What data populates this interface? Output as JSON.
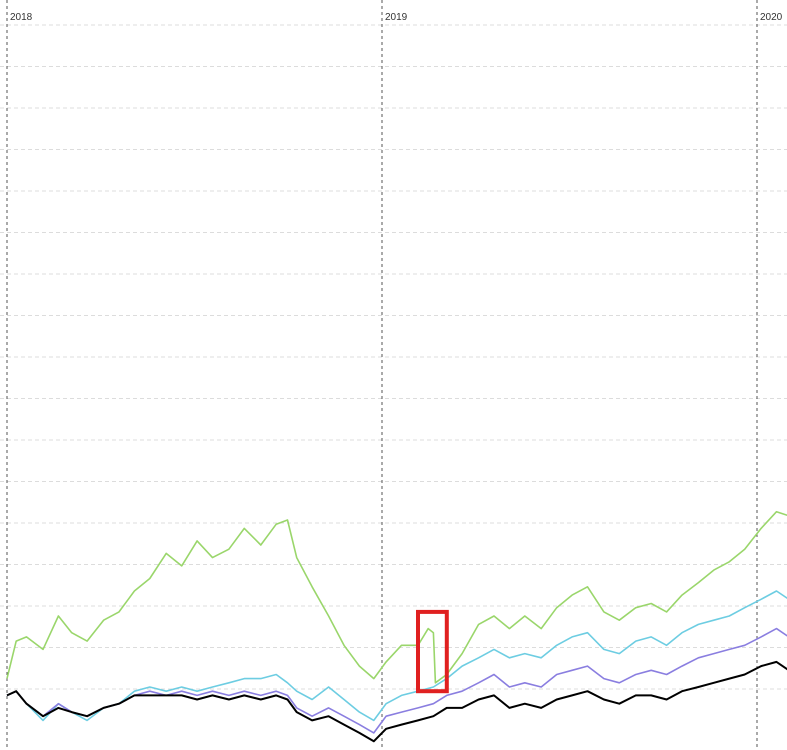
{
  "chart_data": {
    "type": "line",
    "title": "",
    "xlabel": "",
    "ylabel": "",
    "x_tick_labels": [
      "2018",
      "2019",
      "2020"
    ],
    "grid": true,
    "legend": "none",
    "series": [
      {
        "color": "#9ad66b",
        "points": [
          [
            "2018-01-01",
            1.02
          ],
          [
            "2018-01-10",
            1.11
          ],
          [
            "2018-01-20",
            1.12
          ],
          [
            "2018-02-05",
            1.09
          ],
          [
            "2018-02-20",
            1.17
          ],
          [
            "2018-03-05",
            1.13
          ],
          [
            "2018-03-20",
            1.11
          ],
          [
            "2018-04-05",
            1.16
          ],
          [
            "2018-04-20",
            1.18
          ],
          [
            "2018-05-05",
            1.23
          ],
          [
            "2018-05-20",
            1.26
          ],
          [
            "2018-06-05",
            1.32
          ],
          [
            "2018-06-20",
            1.29
          ],
          [
            "2018-07-05",
            1.35
          ],
          [
            "2018-07-20",
            1.31
          ],
          [
            "2018-08-05",
            1.33
          ],
          [
            "2018-08-20",
            1.38
          ],
          [
            "2018-09-05",
            1.34
          ],
          [
            "2018-09-20",
            1.39
          ],
          [
            "2018-10-01",
            1.4
          ],
          [
            "2018-10-10",
            1.31
          ],
          [
            "2018-10-25",
            1.24
          ],
          [
            "2018-11-10",
            1.17
          ],
          [
            "2018-11-25",
            1.1
          ],
          [
            "2018-12-10",
            1.05
          ],
          [
            "2018-12-24",
            1.02
          ],
          [
            "2019-01-05",
            1.06
          ],
          [
            "2019-01-20",
            1.1
          ],
          [
            "2019-02-05",
            1.1
          ],
          [
            "2019-02-15",
            1.14
          ],
          [
            "2019-02-20",
            1.13
          ],
          [
            "2019-02-22",
            1.01
          ],
          [
            "2019-03-05",
            1.03
          ],
          [
            "2019-03-20",
            1.08
          ],
          [
            "2019-04-05",
            1.15
          ],
          [
            "2019-04-20",
            1.17
          ],
          [
            "2019-05-05",
            1.14
          ],
          [
            "2019-05-20",
            1.17
          ],
          [
            "2019-06-05",
            1.14
          ],
          [
            "2019-06-20",
            1.19
          ],
          [
            "2019-07-05",
            1.22
          ],
          [
            "2019-07-20",
            1.24
          ],
          [
            "2019-08-05",
            1.18
          ],
          [
            "2019-08-20",
            1.16
          ],
          [
            "2019-09-05",
            1.19
          ],
          [
            "2019-09-20",
            1.2
          ],
          [
            "2019-10-05",
            1.18
          ],
          [
            "2019-10-20",
            1.22
          ],
          [
            "2019-11-05",
            1.25
          ],
          [
            "2019-11-20",
            1.28
          ],
          [
            "2019-12-05",
            1.3
          ],
          [
            "2019-12-20",
            1.33
          ],
          [
            "2020-01-05",
            1.38
          ],
          [
            "2020-01-20",
            1.42
          ],
          [
            "2020-02-01",
            1.41
          ]
        ]
      },
      {
        "color": "#6dcde2",
        "points": [
          [
            "2018-01-01",
            0.98
          ],
          [
            "2018-01-10",
            0.99
          ],
          [
            "2018-01-20",
            0.96
          ],
          [
            "2018-02-05",
            0.92
          ],
          [
            "2018-02-20",
            0.96
          ],
          [
            "2018-03-05",
            0.94
          ],
          [
            "2018-03-20",
            0.92
          ],
          [
            "2018-04-05",
            0.95
          ],
          [
            "2018-04-20",
            0.96
          ],
          [
            "2018-05-05",
            0.99
          ],
          [
            "2018-05-20",
            1.0
          ],
          [
            "2018-06-05",
            0.99
          ],
          [
            "2018-06-20",
            1.0
          ],
          [
            "2018-07-05",
            0.99
          ],
          [
            "2018-07-20",
            1.0
          ],
          [
            "2018-08-05",
            1.01
          ],
          [
            "2018-08-20",
            1.02
          ],
          [
            "2018-09-05",
            1.02
          ],
          [
            "2018-09-20",
            1.03
          ],
          [
            "2018-10-01",
            1.01
          ],
          [
            "2018-10-10",
            0.99
          ],
          [
            "2018-10-25",
            0.97
          ],
          [
            "2018-11-10",
            1.0
          ],
          [
            "2018-11-25",
            0.97
          ],
          [
            "2018-12-10",
            0.94
          ],
          [
            "2018-12-24",
            0.92
          ],
          [
            "2019-01-05",
            0.96
          ],
          [
            "2019-01-20",
            0.98
          ],
          [
            "2019-02-05",
            0.99
          ],
          [
            "2019-02-20",
            1.0
          ],
          [
            "2019-03-05",
            1.02
          ],
          [
            "2019-03-20",
            1.05
          ],
          [
            "2019-04-05",
            1.07
          ],
          [
            "2019-04-20",
            1.09
          ],
          [
            "2019-05-05",
            1.07
          ],
          [
            "2019-05-20",
            1.08
          ],
          [
            "2019-06-05",
            1.07
          ],
          [
            "2019-06-20",
            1.1
          ],
          [
            "2019-07-05",
            1.12
          ],
          [
            "2019-07-20",
            1.13
          ],
          [
            "2019-08-05",
            1.09
          ],
          [
            "2019-08-20",
            1.08
          ],
          [
            "2019-09-05",
            1.11
          ],
          [
            "2019-09-20",
            1.12
          ],
          [
            "2019-10-05",
            1.1
          ],
          [
            "2019-10-20",
            1.13
          ],
          [
            "2019-11-05",
            1.15
          ],
          [
            "2019-11-20",
            1.16
          ],
          [
            "2019-12-05",
            1.17
          ],
          [
            "2019-12-20",
            1.19
          ],
          [
            "2020-01-05",
            1.21
          ],
          [
            "2020-01-20",
            1.23
          ],
          [
            "2020-02-01",
            1.21
          ]
        ]
      },
      {
        "color": "#8a7ee0",
        "points": [
          [
            "2018-01-01",
            0.98
          ],
          [
            "2018-01-10",
            0.99
          ],
          [
            "2018-01-20",
            0.96
          ],
          [
            "2018-02-05",
            0.93
          ],
          [
            "2018-02-20",
            0.96
          ],
          [
            "2018-03-05",
            0.94
          ],
          [
            "2018-03-20",
            0.93
          ],
          [
            "2018-04-05",
            0.95
          ],
          [
            "2018-04-20",
            0.96
          ],
          [
            "2018-05-05",
            0.98
          ],
          [
            "2018-05-20",
            0.99
          ],
          [
            "2018-06-05",
            0.98
          ],
          [
            "2018-06-20",
            0.99
          ],
          [
            "2018-07-05",
            0.98
          ],
          [
            "2018-07-20",
            0.99
          ],
          [
            "2018-08-05",
            0.98
          ],
          [
            "2018-08-20",
            0.99
          ],
          [
            "2018-09-05",
            0.98
          ],
          [
            "2018-09-20",
            0.99
          ],
          [
            "2018-10-01",
            0.98
          ],
          [
            "2018-10-10",
            0.95
          ],
          [
            "2018-10-25",
            0.93
          ],
          [
            "2018-11-10",
            0.95
          ],
          [
            "2018-11-25",
            0.93
          ],
          [
            "2018-12-10",
            0.91
          ],
          [
            "2018-12-24",
            0.89
          ],
          [
            "2019-01-05",
            0.93
          ],
          [
            "2019-01-20",
            0.94
          ],
          [
            "2019-02-05",
            0.95
          ],
          [
            "2019-02-20",
            0.96
          ],
          [
            "2019-03-05",
            0.98
          ],
          [
            "2019-03-20",
            0.99
          ],
          [
            "2019-04-05",
            1.01
          ],
          [
            "2019-04-20",
            1.03
          ],
          [
            "2019-05-05",
            1.0
          ],
          [
            "2019-05-20",
            1.01
          ],
          [
            "2019-06-05",
            1.0
          ],
          [
            "2019-06-20",
            1.03
          ],
          [
            "2019-07-05",
            1.04
          ],
          [
            "2019-07-20",
            1.05
          ],
          [
            "2019-08-05",
            1.02
          ],
          [
            "2019-08-20",
            1.01
          ],
          [
            "2019-09-05",
            1.03
          ],
          [
            "2019-09-20",
            1.04
          ],
          [
            "2019-10-05",
            1.03
          ],
          [
            "2019-10-20",
            1.05
          ],
          [
            "2019-11-05",
            1.07
          ],
          [
            "2019-11-20",
            1.08
          ],
          [
            "2019-12-05",
            1.09
          ],
          [
            "2019-12-20",
            1.1
          ],
          [
            "2020-01-05",
            1.12
          ],
          [
            "2020-01-20",
            1.14
          ],
          [
            "2020-02-01",
            1.12
          ]
        ]
      },
      {
        "color": "#000000",
        "points": [
          [
            "2018-01-01",
            0.98
          ],
          [
            "2018-01-10",
            0.99
          ],
          [
            "2018-01-20",
            0.96
          ],
          [
            "2018-02-05",
            0.93
          ],
          [
            "2018-02-20",
            0.95
          ],
          [
            "2018-03-05",
            0.94
          ],
          [
            "2018-03-20",
            0.93
          ],
          [
            "2018-04-05",
            0.95
          ],
          [
            "2018-04-20",
            0.96
          ],
          [
            "2018-05-05",
            0.98
          ],
          [
            "2018-05-20",
            0.98
          ],
          [
            "2018-06-05",
            0.98
          ],
          [
            "2018-06-20",
            0.98
          ],
          [
            "2018-07-05",
            0.97
          ],
          [
            "2018-07-20",
            0.98
          ],
          [
            "2018-08-05",
            0.97
          ],
          [
            "2018-08-20",
            0.98
          ],
          [
            "2018-09-05",
            0.97
          ],
          [
            "2018-09-20",
            0.98
          ],
          [
            "2018-10-01",
            0.97
          ],
          [
            "2018-10-10",
            0.94
          ],
          [
            "2018-10-25",
            0.92
          ],
          [
            "2018-11-10",
            0.93
          ],
          [
            "2018-11-25",
            0.91
          ],
          [
            "2018-12-10",
            0.89
          ],
          [
            "2018-12-24",
            0.87
          ],
          [
            "2019-01-05",
            0.9
          ],
          [
            "2019-01-20",
            0.91
          ],
          [
            "2019-02-05",
            0.92
          ],
          [
            "2019-02-20",
            0.93
          ],
          [
            "2019-03-05",
            0.95
          ],
          [
            "2019-03-20",
            0.95
          ],
          [
            "2019-04-05",
            0.97
          ],
          [
            "2019-04-20",
            0.98
          ],
          [
            "2019-05-05",
            0.95
          ],
          [
            "2019-05-20",
            0.96
          ],
          [
            "2019-06-05",
            0.95
          ],
          [
            "2019-06-20",
            0.97
          ],
          [
            "2019-07-05",
            0.98
          ],
          [
            "2019-07-20",
            0.99
          ],
          [
            "2019-08-05",
            0.97
          ],
          [
            "2019-08-20",
            0.96
          ],
          [
            "2019-09-05",
            0.98
          ],
          [
            "2019-09-20",
            0.98
          ],
          [
            "2019-10-05",
            0.97
          ],
          [
            "2019-10-20",
            0.99
          ],
          [
            "2019-11-05",
            1.0
          ],
          [
            "2019-11-20",
            1.01
          ],
          [
            "2019-12-05",
            1.02
          ],
          [
            "2019-12-20",
            1.03
          ],
          [
            "2020-01-05",
            1.05
          ],
          [
            "2020-01-20",
            1.06
          ],
          [
            "2020-02-01",
            1.04
          ]
        ]
      }
    ],
    "highlight_box": {
      "x_range": [
        "2019-02-05",
        "2019-03-05"
      ],
      "y_range": [
        0.99,
        1.18
      ],
      "color": "#e02020"
    }
  }
}
